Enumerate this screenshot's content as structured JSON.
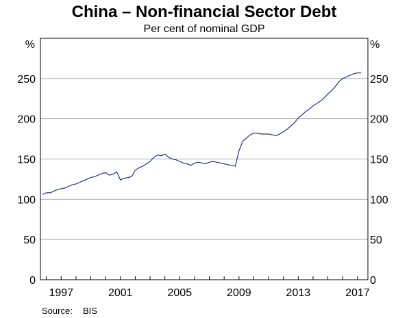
{
  "chart_data": {
    "type": "line",
    "title": "China – Non-financial Sector Debt",
    "subtitle": "Per cent of nominal GDP",
    "unit_left": "%",
    "unit_right": "%",
    "ylim": [
      0,
      300
    ],
    "yticks": [
      0,
      50,
      100,
      150,
      200,
      250
    ],
    "xlim": [
      1995.6,
      2017.7
    ],
    "xticks": [
      1997,
      2001,
      2005,
      2009,
      2013,
      2017
    ],
    "source_label": "Source:",
    "source_value": "BIS",
    "grid": true,
    "line_color": "#1f2f8f",
    "series": [
      {
        "name": "",
        "x": [
          1995.75,
          1996.0,
          1996.25,
          1996.5,
          1996.75,
          1997.0,
          1997.25,
          1997.5,
          1997.75,
          1998.0,
          1998.25,
          1998.5,
          1998.75,
          1999.0,
          1999.25,
          1999.5,
          1999.75,
          2000.0,
          2000.25,
          2000.5,
          2000.75,
          2001.0,
          2001.25,
          2001.5,
          2001.75,
          2002.0,
          2002.25,
          2002.5,
          2002.75,
          2003.0,
          2003.25,
          2003.5,
          2003.75,
          2004.0,
          2004.25,
          2004.5,
          2004.75,
          2005.0,
          2005.25,
          2005.5,
          2005.75,
          2006.0,
          2006.25,
          2006.5,
          2006.75,
          2007.0,
          2007.25,
          2007.5,
          2007.75,
          2008.0,
          2008.25,
          2008.5,
          2008.75,
          2009.0,
          2009.25,
          2009.5,
          2009.75,
          2010.0,
          2010.25,
          2010.5,
          2010.75,
          2011.0,
          2011.25,
          2011.5,
          2011.75,
          2012.0,
          2012.25,
          2012.5,
          2012.75,
          2013.0,
          2013.25,
          2013.5,
          2013.75,
          2014.0,
          2014.25,
          2014.5,
          2014.75,
          2015.0,
          2015.25,
          2015.5,
          2015.75,
          2016.0,
          2016.25,
          2016.5,
          2016.75,
          2017.0,
          2017.25
        ],
        "values": [
          106,
          108,
          108,
          110,
          112,
          113,
          114,
          116,
          118,
          119,
          121,
          123,
          125,
          127,
          128,
          130,
          132,
          133,
          130,
          131,
          134,
          124,
          126,
          127,
          128,
          136,
          139,
          141,
          144,
          147,
          152,
          155,
          154,
          156,
          152,
          150,
          149,
          147,
          145,
          144,
          142,
          145,
          146,
          145,
          144,
          146,
          147,
          146,
          145,
          144,
          143,
          142,
          141,
          160,
          172,
          176,
          180,
          182,
          182,
          181,
          181,
          181,
          180,
          179,
          181,
          184,
          187,
          191,
          195,
          201,
          205,
          209,
          212,
          216,
          219,
          222,
          226,
          231,
          235,
          240,
          246,
          250,
          252,
          254,
          256,
          257,
          257
        ]
      }
    ]
  }
}
